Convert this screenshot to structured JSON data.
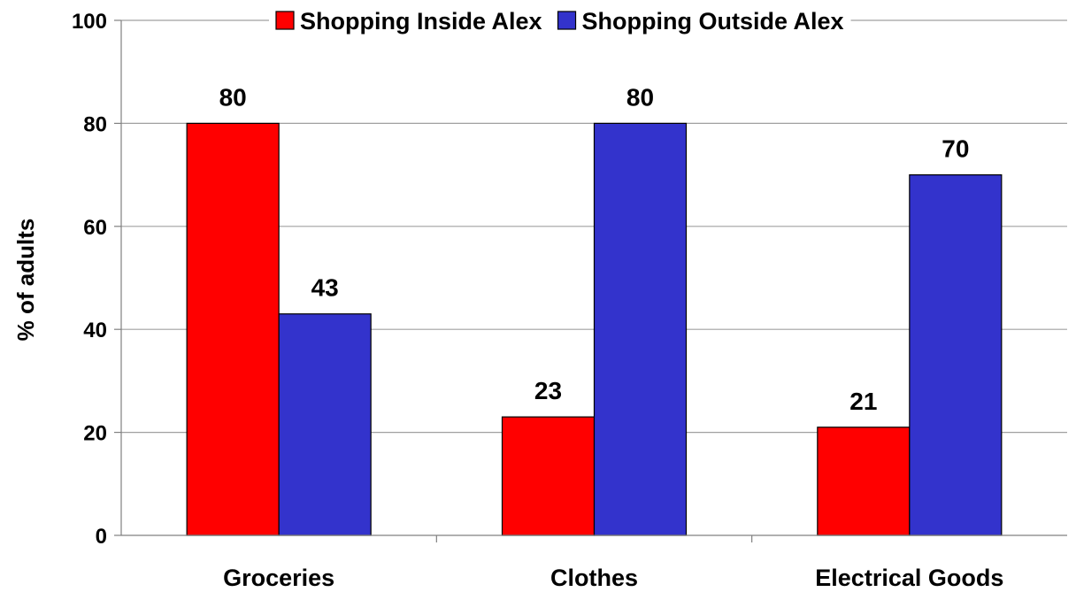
{
  "chart_data": {
    "type": "bar",
    "categories": [
      "Groceries",
      "Clothes",
      "Electrical Goods"
    ],
    "series": [
      {
        "name": "Shopping Inside Alex",
        "values": [
          80,
          23,
          21
        ],
        "color": "#ff0000"
      },
      {
        "name": "Shopping Outside Alex",
        "values": [
          43,
          80,
          70
        ],
        "color": "#3333cc"
      }
    ],
    "ylabel": "% of adults",
    "ylim": [
      0,
      100
    ],
    "yticks": [
      0,
      20,
      40,
      60,
      80,
      100
    ],
    "grid": true,
    "legend": "top-center",
    "data_labels": true
  }
}
